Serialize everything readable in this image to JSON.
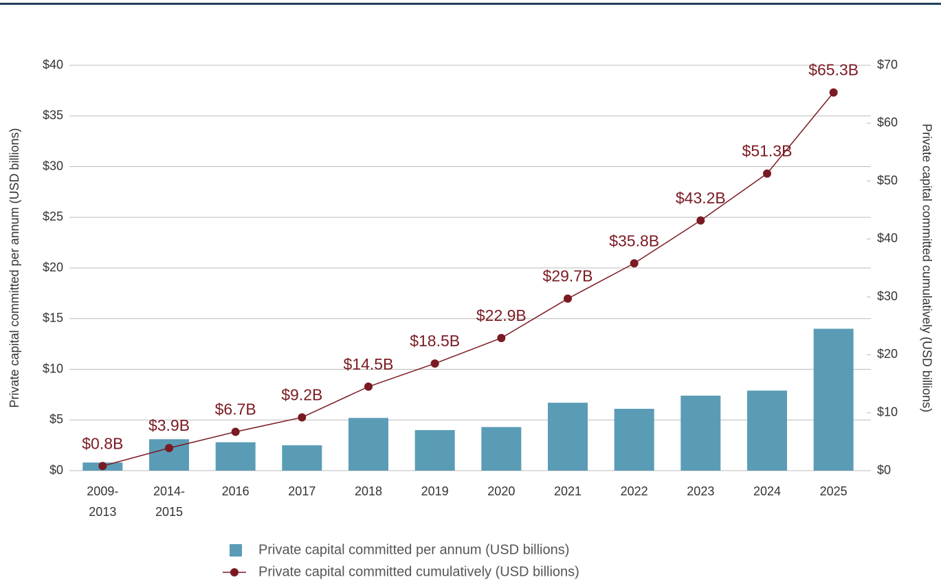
{
  "chart_data": {
    "type": "bar-line",
    "categories": [
      "2009-2013",
      "2014-2015",
      "2016",
      "2017",
      "2018",
      "2019",
      "2020",
      "2021",
      "2022",
      "2023",
      "2024",
      "2025"
    ],
    "series": [
      {
        "name": "Private capital committed per annum (USD billions)",
        "type": "bar",
        "color": "#5a9cb5",
        "values": [
          0.8,
          3.1,
          2.8,
          2.5,
          5.2,
          4.0,
          4.3,
          6.7,
          6.1,
          7.4,
          7.9,
          14.0
        ]
      },
      {
        "name": "Private capital committed cumulatively (USD billions)",
        "type": "line",
        "axis": "y2",
        "color": "#7a1a22",
        "values": [
          0.8,
          3.9,
          6.7,
          9.2,
          14.5,
          18.5,
          22.9,
          29.7,
          35.8,
          43.2,
          51.3,
          65.3
        ],
        "value_labels": [
          "$0.8B",
          "$3.9B",
          "$6.7B",
          "$9.2B",
          "$14.5B",
          "$18.5B",
          "$22.9B",
          "$29.7B",
          "$35.8B",
          "$43.2B",
          "$51.3B",
          "$65.3B"
        ]
      }
    ],
    "ylabel": "Private capital committed per annum (USD billions)",
    "y2label": "Private capital committed cumulatively (USD billions)",
    "ylim": [
      0,
      40
    ],
    "yticks": [
      {
        "value": 0,
        "label": "$0"
      },
      {
        "value": 5,
        "label": "$5"
      },
      {
        "value": 10,
        "label": "$10"
      },
      {
        "value": 15,
        "label": "$15"
      },
      {
        "value": 20,
        "label": "$20"
      },
      {
        "value": 25,
        "label": "$25"
      },
      {
        "value": 30,
        "label": "$30"
      },
      {
        "value": 35,
        "label": "$35"
      },
      {
        "value": 40,
        "label": "$40"
      }
    ],
    "y2lim": [
      0,
      70
    ],
    "y2ticks": [
      {
        "value": 0,
        "label": "$0"
      },
      {
        "value": 10,
        "label": "$10"
      },
      {
        "value": 20,
        "label": "$20"
      },
      {
        "value": 30,
        "label": "$30"
      },
      {
        "value": 40,
        "label": "$40"
      },
      {
        "value": 50,
        "label": "$50"
      },
      {
        "value": 60,
        "label": "$60"
      },
      {
        "value": 70,
        "label": "$70"
      }
    ],
    "grid": true,
    "legend": "bottom"
  }
}
